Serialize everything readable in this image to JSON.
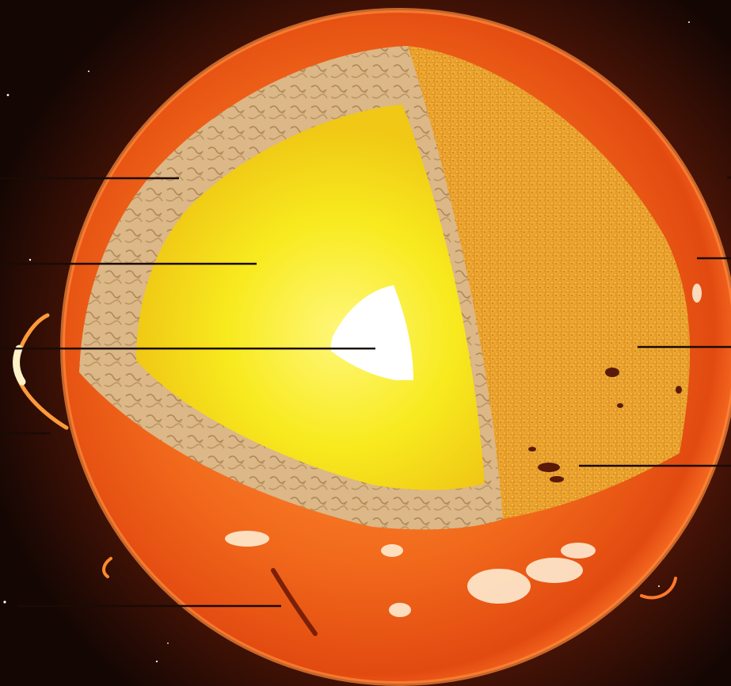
{
  "diagram": {
    "subject": "sun-cutaway",
    "layers": [
      "corona-glow",
      "photosphere",
      "convective-zone",
      "radiative-zone",
      "core",
      "sunspots",
      "prominence",
      "faculae"
    ],
    "pointer_count": 9,
    "labels": []
  },
  "colors": {
    "space": "#1a0803",
    "photosphere": "#f26a1c",
    "photosphere_edge": "#d9400c",
    "convective_zone": "#d9b382",
    "radiative_zone": "#f5e112",
    "radiative_zone_inner": "#fff56a",
    "core": "#ffffff",
    "surface_cut": "#e9a42a",
    "sunspot": "#5a1a08",
    "prominence": "#ffb347",
    "pointer_line": "#1a0b05"
  }
}
